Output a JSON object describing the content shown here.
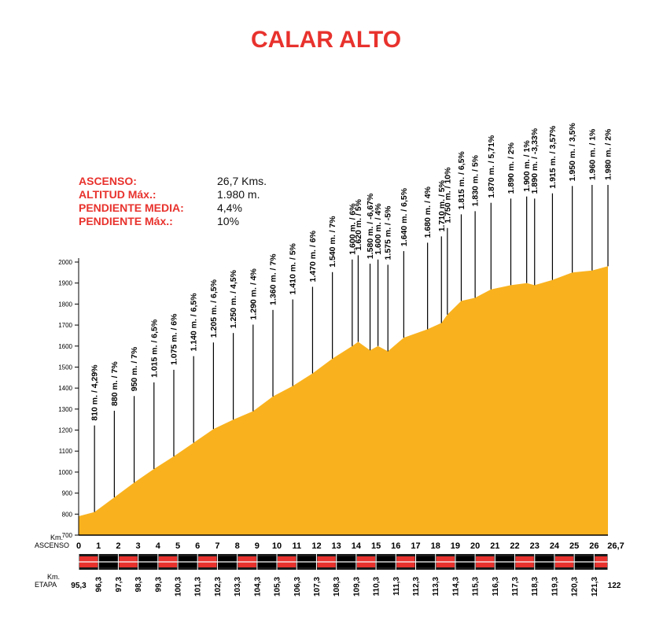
{
  "title": "CALAR ALTO",
  "stats": [
    {
      "label": "ASCENSO:",
      "value": "26,7 Kms."
    },
    {
      "label": "ALTITUD Máx.:",
      "value": "1.980 m."
    },
    {
      "label": "PENDIENTE MEDIA:",
      "value": "4,4%"
    },
    {
      "label": "PENDIENTE Máx.:",
      "value": "10%"
    }
  ],
  "colors": {
    "accent": "#e8322d",
    "fill": "#f9b21e",
    "line": "#000000",
    "band_dark": "#1a1a1a"
  },
  "chart_data": {
    "type": "area",
    "title": "CALAR ALTO",
    "xlabel": "Km. ASCENSO",
    "x2label": "Km. ETAPA",
    "ylabel": "",
    "xlim": [
      0,
      26.7
    ],
    "ylim": [
      700,
      2050
    ],
    "y_ticks": [
      700,
      800,
      900,
      1000,
      1100,
      1200,
      1300,
      1400,
      1500,
      1600,
      1700,
      1800,
      1900,
      2000
    ],
    "x_ticks": [
      0,
      1,
      2,
      3,
      4,
      5,
      6,
      7,
      8,
      9,
      10,
      11,
      12,
      13,
      14,
      15,
      16,
      17,
      18,
      19,
      20,
      21,
      22,
      23,
      24,
      25,
      26,
      26.7
    ],
    "x_tick_labels": [
      "0",
      "1",
      "2",
      "3",
      "4",
      "5",
      "6",
      "7",
      "8",
      "9",
      "10",
      "11",
      "12",
      "13",
      "14",
      "15",
      "16",
      "17",
      "18",
      "19",
      "20",
      "21",
      "22",
      "23",
      "24",
      "25",
      "26",
      "26,7"
    ],
    "etapa_labels": [
      "95,3",
      "96,3",
      "97,3",
      "98,3",
      "99,3",
      "100,3",
      "101,3",
      "102,3",
      "103,3",
      "104,3",
      "105,3",
      "106,3",
      "107,3",
      "108,3",
      "109,3",
      "110,3",
      "111,3",
      "112,3",
      "113,3",
      "114,3",
      "115,3",
      "116,3",
      "117,3",
      "118,3",
      "119,3",
      "120,3",
      "121,3",
      "122"
    ],
    "profile": [
      [
        0,
        790
      ],
      [
        0.8,
        810
      ],
      [
        1.8,
        880
      ],
      [
        2.8,
        950
      ],
      [
        3.8,
        1015
      ],
      [
        4.8,
        1075
      ],
      [
        5.8,
        1140
      ],
      [
        6.8,
        1205
      ],
      [
        7.8,
        1250
      ],
      [
        8.8,
        1290
      ],
      [
        9.8,
        1360
      ],
      [
        10.8,
        1410
      ],
      [
        11.8,
        1470
      ],
      [
        12.8,
        1540
      ],
      [
        13.8,
        1600
      ],
      [
        14.1,
        1620
      ],
      [
        14.7,
        1580
      ],
      [
        15.1,
        1600
      ],
      [
        15.6,
        1575
      ],
      [
        16.4,
        1640
      ],
      [
        17.6,
        1680
      ],
      [
        18.3,
        1710
      ],
      [
        18.6,
        1750
      ],
      [
        19.3,
        1815
      ],
      [
        20.0,
        1830
      ],
      [
        20.8,
        1870
      ],
      [
        21.8,
        1890
      ],
      [
        22.6,
        1900
      ],
      [
        23.0,
        1890
      ],
      [
        23.9,
        1915
      ],
      [
        24.9,
        1950
      ],
      [
        25.9,
        1960
      ],
      [
        26.7,
        1980
      ]
    ],
    "annotations": [
      {
        "x": 0.8,
        "y": 810,
        "label": "810 m. / 4,29%"
      },
      {
        "x": 1.8,
        "y": 880,
        "label": "880 m. / 7%"
      },
      {
        "x": 2.8,
        "y": 950,
        "label": "950 m. / 7%"
      },
      {
        "x": 3.8,
        "y": 1015,
        "label": "1.015 m. / 6,5%"
      },
      {
        "x": 4.8,
        "y": 1075,
        "label": "1.075 m. / 6%"
      },
      {
        "x": 5.8,
        "y": 1140,
        "label": "1.140 m. / 6,5%"
      },
      {
        "x": 6.8,
        "y": 1205,
        "label": "1.205 m. / 6,5%"
      },
      {
        "x": 7.8,
        "y": 1250,
        "label": "1.250 m. / 4,5%"
      },
      {
        "x": 8.8,
        "y": 1290,
        "label": "1.290 m. / 4%"
      },
      {
        "x": 9.8,
        "y": 1360,
        "label": "1.360 m. / 7%"
      },
      {
        "x": 10.8,
        "y": 1410,
        "label": "1.410 m. / 5%"
      },
      {
        "x": 11.8,
        "y": 1470,
        "label": "1.470 m. / 6%"
      },
      {
        "x": 12.8,
        "y": 1540,
        "label": "1.540 m. / 7%"
      },
      {
        "x": 13.8,
        "y": 1600,
        "label": "1.600 m. / 6%"
      },
      {
        "x": 14.1,
        "y": 1620,
        "label": "1.620 m. / 5%"
      },
      {
        "x": 14.7,
        "y": 1580,
        "label": "1.580 m. / -6,67%"
      },
      {
        "x": 15.1,
        "y": 1600,
        "label": "1.600 m. / 4%"
      },
      {
        "x": 15.6,
        "y": 1575,
        "label": "1.575 m. / -5%"
      },
      {
        "x": 16.4,
        "y": 1640,
        "label": "1.640 m. / 6,5%"
      },
      {
        "x": 17.6,
        "y": 1680,
        "label": "1.680 m. / 4%"
      },
      {
        "x": 18.3,
        "y": 1710,
        "label": "1.710 m. / 5%"
      },
      {
        "x": 18.6,
        "y": 1750,
        "label": "1.750 m. / 10%"
      },
      {
        "x": 19.3,
        "y": 1815,
        "label": "1.815 m. / 6,5%"
      },
      {
        "x": 20.0,
        "y": 1830,
        "label": "1.830 m. / 5%"
      },
      {
        "x": 20.8,
        "y": 1870,
        "label": "1.870 m. / 5,71%"
      },
      {
        "x": 21.8,
        "y": 1890,
        "label": "1.890 m. / 2%"
      },
      {
        "x": 22.6,
        "y": 1900,
        "label": "1.900 m. / 1%"
      },
      {
        "x": 23.0,
        "y": 1890,
        "label": "1.890 m. / -3,33%"
      },
      {
        "x": 23.9,
        "y": 1915,
        "label": "1.915 m. / 3,57%"
      },
      {
        "x": 24.9,
        "y": 1950,
        "label": "1.950 m. / 3,5%"
      },
      {
        "x": 25.9,
        "y": 1960,
        "label": "1.960 m. / 1%"
      },
      {
        "x": 26.7,
        "y": 1980,
        "label": "1.980 m. / 2%"
      }
    ],
    "grid": false,
    "legend": "none"
  }
}
